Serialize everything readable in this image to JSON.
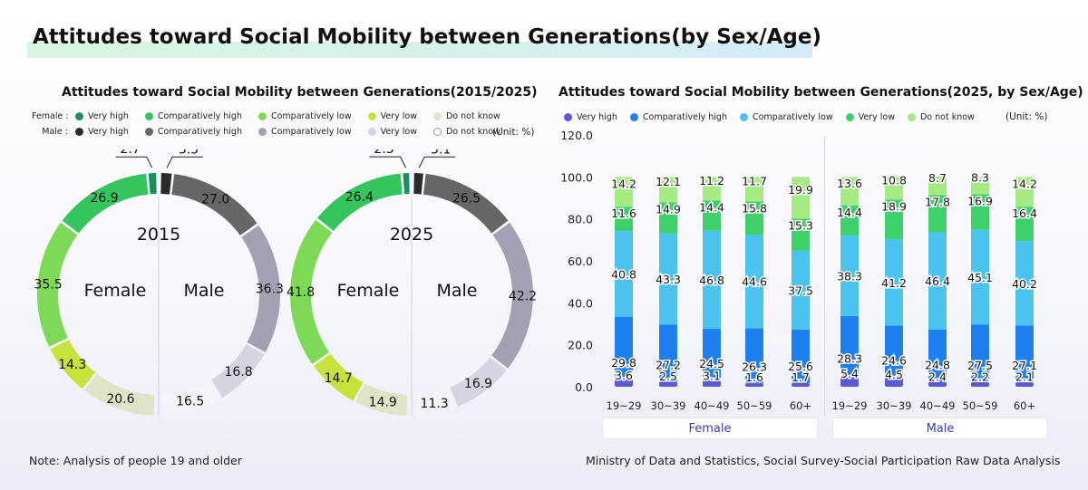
{
  "title": "Attitudes toward Social Mobility between Generations(by Sex/Age)",
  "left_chart_title": "Attitudes toward Social Mobility between Generations(2015/2025)",
  "right_chart_title": "Attitudes toward Social Mobility between Generations(2025, by Sex/Age)",
  "legend": {
    "female_label": "Female :",
    "male_label": "Male :",
    "items": [
      "Very high",
      "Comparatively high",
      "Comparatively low",
      "Very low",
      "Do not know"
    ],
    "female_colors": [
      "#1a8f5e",
      "#36c45e",
      "#7ed957",
      "#c8e23c",
      "#dde5c6"
    ],
    "male_colors": [
      "#2b2b2b",
      "#666666",
      "#a1a1b3",
      "#d5d5e2",
      "#ffffff"
    ]
  },
  "right_legend": {
    "items": [
      "Very high",
      "Comparatively high",
      "Comparatively low",
      "Very low",
      "Do not know"
    ],
    "colors": [
      "#5a5ad6",
      "#1e80f0",
      "#4cc3ef",
      "#3ed06a",
      "#a6ea84"
    ]
  },
  "unit_left": "(Unit: %)",
  "unit_right": "(Unit: %)",
  "labels": {
    "female": "Female",
    "male": "Male",
    "female_cat": "Female",
    "male_cat": "Male"
  },
  "note": "Note: Analysis of people 19 and older",
  "source": "Ministry of Data and Statistics, Social Survey-Social Participation Raw Data Analysis",
  "chart_data": [
    {
      "type": "pie",
      "subtype": "donut",
      "center_label": "2015",
      "categories": [
        "Very high",
        "Comparatively high",
        "Comparatively low",
        "Very low",
        "Do not know"
      ],
      "series": [
        {
          "name": "Female",
          "values": [
            2.7,
            26.9,
            35.5,
            14.3,
            20.6
          ]
        },
        {
          "name": "Male",
          "values": [
            3.5,
            27.0,
            36.3,
            16.8,
            16.5
          ]
        }
      ]
    },
    {
      "type": "pie",
      "subtype": "donut",
      "center_label": "2025",
      "categories": [
        "Very high",
        "Comparatively high",
        "Comparatively low",
        "Very low",
        "Do not know"
      ],
      "series": [
        {
          "name": "Female",
          "values": [
            2.3,
            26.4,
            41.8,
            14.7,
            14.9
          ]
        },
        {
          "name": "Male",
          "values": [
            3.1,
            26.5,
            42.2,
            16.9,
            11.3
          ]
        }
      ]
    },
    {
      "type": "bar",
      "stacked": true,
      "groups": [
        {
          "name": "Female",
          "categories": [
            "19~29",
            "30~39",
            "40~49",
            "50~59",
            "60+"
          ]
        },
        {
          "name": "Male",
          "categories": [
            "19~29",
            "30~39",
            "40~49",
            "50~59",
            "60+"
          ]
        }
      ],
      "series": [
        {
          "name": "Very high",
          "values": [
            3.6,
            2.5,
            3.1,
            1.6,
            1.7,
            5.4,
            4.5,
            2.4,
            2.2,
            2.1
          ]
        },
        {
          "name": "Comparatively high",
          "values": [
            29.8,
            27.2,
            24.5,
            26.3,
            25.6,
            28.3,
            24.6,
            24.8,
            27.5,
            27.1
          ]
        },
        {
          "name": "Comparatively low",
          "values": [
            40.8,
            43.3,
            46.8,
            44.6,
            37.5,
            38.3,
            41.2,
            46.4,
            45.1,
            40.2
          ]
        },
        {
          "name": "Very low",
          "values": [
            11.6,
            14.9,
            14.4,
            15.8,
            15.3,
            14.4,
            18.9,
            17.8,
            16.9,
            16.4
          ]
        },
        {
          "name": "Do not know",
          "values": [
            14.2,
            12.1,
            11.2,
            11.7,
            19.9,
            13.6,
            10.8,
            8.7,
            8.3,
            14.2
          ]
        }
      ],
      "ylim": [
        0,
        120
      ],
      "yticks": [
        "0.0",
        "20.0",
        "40.0",
        "60.0",
        "80.0",
        "100.0",
        "120.0"
      ],
      "grid": false
    }
  ]
}
